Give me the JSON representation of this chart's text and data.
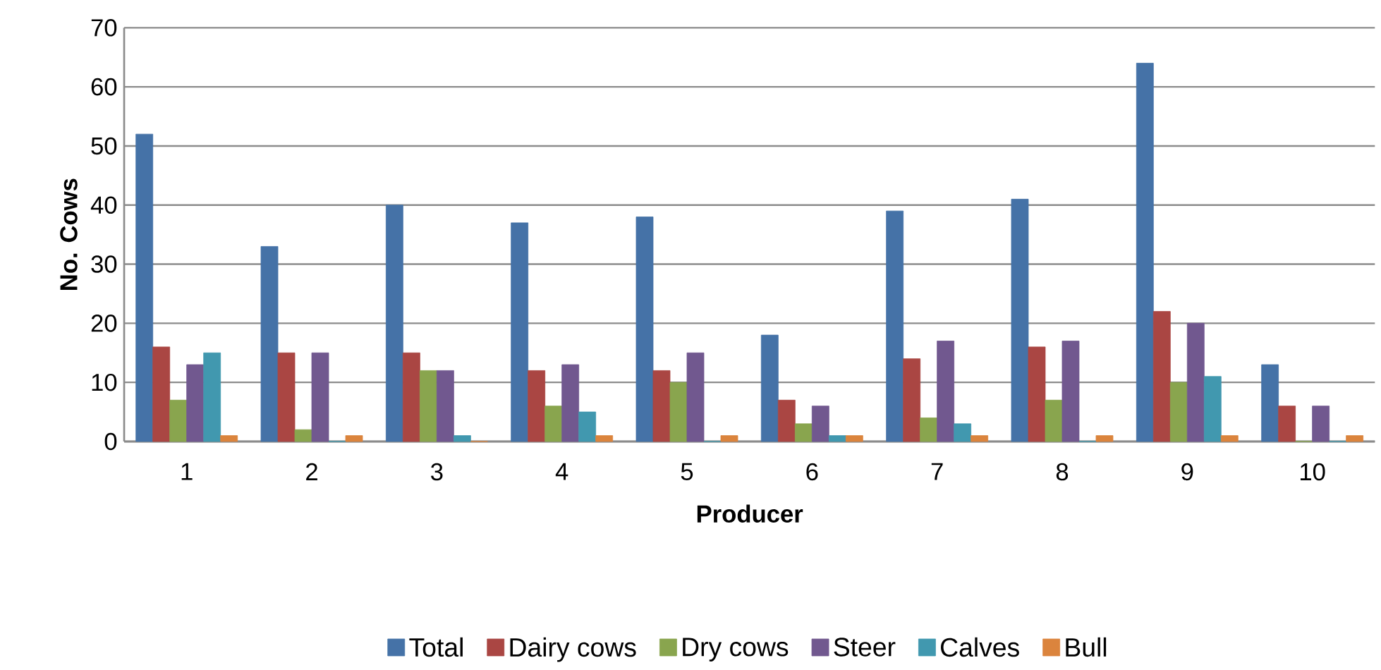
{
  "chart_data": {
    "type": "bar",
    "xlabel": "Producer",
    "ylabel": "No. Cows",
    "categories": [
      "1",
      "2",
      "3",
      "4",
      "5",
      "6",
      "7",
      "8",
      "9",
      "10"
    ],
    "series": [
      {
        "name": "Total",
        "color": "#4572a7",
        "values": [
          52,
          33,
          40,
          37,
          38,
          18,
          39,
          41,
          64,
          13
        ]
      },
      {
        "name": "Dairy cows",
        "color": "#aa4643",
        "values": [
          16,
          15,
          15,
          12,
          12,
          7,
          14,
          16,
          22,
          6
        ]
      },
      {
        "name": "Dry cows",
        "color": "#89a54e",
        "values": [
          7,
          2,
          12,
          6,
          10,
          3,
          4,
          7,
          10,
          0
        ]
      },
      {
        "name": "Steer",
        "color": "#71588f",
        "values": [
          13,
          15,
          12,
          13,
          15,
          6,
          17,
          17,
          20,
          6
        ]
      },
      {
        "name": "Calves",
        "color": "#4198af",
        "values": [
          15,
          0,
          1,
          5,
          0,
          1,
          3,
          0,
          11,
          0
        ]
      },
      {
        "name": "Bull",
        "color": "#db843d",
        "values": [
          1,
          1,
          0,
          1,
          1,
          1,
          1,
          1,
          1,
          1
        ]
      }
    ],
    "ylim": [
      0,
      70
    ],
    "yticks": [
      0,
      10,
      20,
      30,
      40,
      50,
      60,
      70
    ],
    "grid": "y",
    "legend": "bottom"
  }
}
